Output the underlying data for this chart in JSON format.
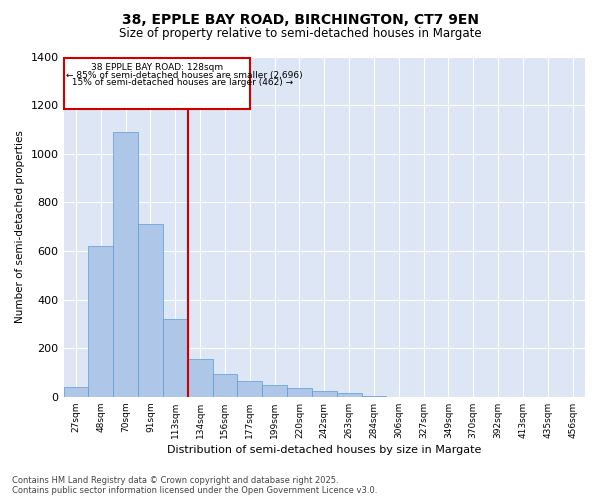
{
  "title_line1": "38, EPPLE BAY ROAD, BIRCHINGTON, CT7 9EN",
  "title_line2": "Size of property relative to semi-detached houses in Margate",
  "xlabel": "Distribution of semi-detached houses by size in Margate",
  "ylabel": "Number of semi-detached properties",
  "property_label": "38 EPPLE BAY ROAD: 128sqm",
  "pct_smaller": 85,
  "count_smaller": 2696,
  "pct_larger": 15,
  "count_larger": 462,
  "bin_labels": [
    "27sqm",
    "48sqm",
    "70sqm",
    "91sqm",
    "113sqm",
    "134sqm",
    "156sqm",
    "177sqm",
    "199sqm",
    "220sqm",
    "242sqm",
    "263sqm",
    "284sqm",
    "306sqm",
    "327sqm",
    "349sqm",
    "370sqm",
    "392sqm",
    "413sqm",
    "435sqm",
    "456sqm"
  ],
  "bar_values": [
    40,
    620,
    1090,
    710,
    320,
    155,
    95,
    65,
    50,
    35,
    25,
    15,
    5,
    0,
    0,
    0,
    0,
    0,
    0,
    0,
    0
  ],
  "bar_color": "#aec6e8",
  "bar_edge_color": "#5b9bd5",
  "vline_color": "#cc0000",
  "vline_bin_index": 4,
  "annotation_box_color": "#cc0000",
  "background_color": "#dce6f5",
  "ylim": [
    0,
    1400
  ],
  "yticks": [
    0,
    200,
    400,
    600,
    800,
    1000,
    1200,
    1400
  ],
  "footer_line1": "Contains HM Land Registry data © Crown copyright and database right 2025.",
  "footer_line2": "Contains public sector information licensed under the Open Government Licence v3.0."
}
